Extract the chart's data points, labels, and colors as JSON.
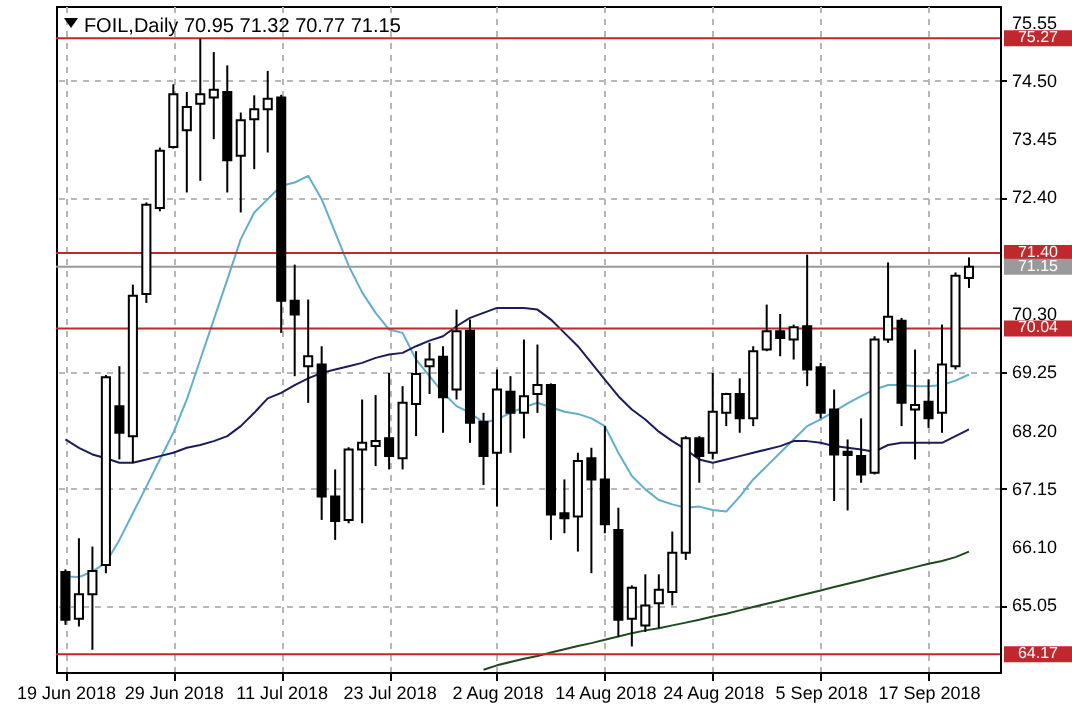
{
  "chart_data": {
    "type": "candlestick",
    "title": "FOIL,Daily  70.95 71.32 70.77 71.15",
    "categories": [
      "19 Jun 2018",
      null,
      null,
      null,
      null,
      null,
      null,
      null,
      "29 Jun 2018",
      null,
      null,
      null,
      null,
      null,
      null,
      null,
      "11 Jul 2018",
      null,
      null,
      null,
      null,
      null,
      null,
      null,
      "23 Jul 2018",
      null,
      null,
      null,
      null,
      null,
      null,
      null,
      "2 Aug 2018",
      null,
      null,
      null,
      null,
      null,
      null,
      null,
      "14 Aug 2018",
      null,
      null,
      null,
      null,
      null,
      null,
      null,
      "24 Aug 2018",
      null,
      null,
      null,
      null,
      null,
      null,
      null,
      "5 Sep 2018",
      null,
      null,
      null,
      null,
      null,
      null,
      null,
      "17 Sep 2018",
      null,
      null,
      null
    ],
    "ohlc": [
      [
        65.65,
        65.7,
        64.7,
        64.79
      ],
      [
        64.81,
        66.26,
        64.67,
        65.25
      ],
      [
        65.25,
        66.11,
        64.25,
        65.67
      ],
      [
        65.78,
        69.2,
        65.63,
        69.16
      ],
      [
        68.64,
        69.36,
        67.68,
        68.16
      ],
      [
        68.1,
        70.83,
        67.62,
        70.63
      ],
      [
        70.66,
        72.31,
        70.5,
        72.27
      ],
      [
        72.21,
        73.3,
        72.15,
        73.24
      ],
      [
        73.31,
        74.44,
        73.28,
        74.26
      ],
      [
        73.61,
        74.3,
        72.49,
        74.03
      ],
      [
        74.09,
        75.26,
        72.7,
        74.26
      ],
      [
        74.2,
        75.02,
        73.45,
        74.34
      ],
      [
        74.3,
        74.78,
        72.49,
        73.07
      ],
      [
        73.15,
        73.93,
        72.13,
        73.79
      ],
      [
        73.81,
        74.24,
        72.91,
        73.99
      ],
      [
        73.99,
        74.68,
        73.21,
        74.18
      ],
      [
        74.2,
        74.25,
        69.96,
        70.54
      ],
      [
        70.54,
        71.19,
        69.18,
        70.29
      ],
      [
        69.36,
        70.56,
        68.7,
        69.54
      ],
      [
        69.39,
        69.72,
        66.59,
        67.01
      ],
      [
        67.01,
        67.5,
        66.23,
        66.57
      ],
      [
        66.59,
        67.9,
        66.53,
        67.86
      ],
      [
        67.86,
        68.76,
        66.53,
        67.98
      ],
      [
        67.92,
        68.84,
        67.56,
        68.01
      ],
      [
        68.06,
        69.24,
        67.5,
        67.74
      ],
      [
        67.7,
        69.0,
        67.5,
        68.7
      ],
      [
        68.68,
        69.63,
        68.1,
        69.22
      ],
      [
        69.36,
        69.78,
        68.86,
        69.48
      ],
      [
        69.53,
        69.72,
        68.16,
        68.8
      ],
      [
        68.94,
        70.38,
        68.76,
        69.99
      ],
      [
        70.0,
        70.2,
        67.98,
        68.34
      ],
      [
        68.36,
        68.52,
        67.22,
        67.74
      ],
      [
        67.8,
        69.3,
        66.83,
        68.94
      ],
      [
        68.9,
        69.18,
        67.8,
        68.52
      ],
      [
        68.52,
        69.84,
        68.06,
        68.82
      ],
      [
        68.86,
        69.75,
        68.52,
        69.02
      ],
      [
        69.02,
        69.05,
        66.23,
        66.69
      ],
      [
        66.71,
        67.32,
        66.35,
        66.62
      ],
      [
        66.65,
        67.8,
        66.02,
        67.65
      ],
      [
        67.7,
        67.89,
        65.63,
        67.32
      ],
      [
        67.32,
        68.28,
        66.35,
        66.51
      ],
      [
        66.41,
        66.81,
        64.49,
        64.79
      ],
      [
        64.81,
        65.41,
        64.31,
        65.37
      ],
      [
        64.69,
        65.61,
        64.57,
        65.05
      ],
      [
        65.09,
        65.61,
        64.64,
        65.33
      ],
      [
        65.29,
        66.38,
        65.05,
        66.0
      ],
      [
        66.0,
        68.1,
        65.87,
        68.06
      ],
      [
        68.06,
        68.1,
        67.26,
        67.74
      ],
      [
        67.8,
        69.24,
        67.68,
        68.54
      ],
      [
        68.52,
        68.88,
        68.28,
        68.86
      ],
      [
        68.86,
        69.14,
        68.16,
        68.42
      ],
      [
        68.42,
        69.72,
        68.28,
        69.63
      ],
      [
        69.66,
        70.47,
        69.63,
        69.99
      ],
      [
        69.99,
        70.3,
        69.54,
        69.87
      ],
      [
        69.84,
        70.11,
        69.48,
        70.06
      ],
      [
        70.08,
        71.37,
        69.0,
        69.3
      ],
      [
        69.34,
        69.42,
        68.42,
        68.52
      ],
      [
        68.58,
        68.94,
        66.93,
        67.77
      ],
      [
        67.82,
        68.04,
        66.76,
        67.76
      ],
      [
        67.74,
        68.42,
        67.26,
        67.41
      ],
      [
        67.44,
        69.9,
        67.41,
        69.84
      ],
      [
        69.84,
        71.23,
        69.78,
        70.25
      ],
      [
        70.18,
        70.23,
        68.28,
        68.7
      ],
      [
        68.58,
        69.66,
        67.68,
        68.66
      ],
      [
        68.72,
        69.12,
        68.25,
        68.42
      ],
      [
        68.52,
        70.11,
        68.16,
        69.39
      ],
      [
        69.36,
        71.05,
        69.3,
        70.99
      ],
      [
        70.95,
        71.32,
        70.77,
        71.15
      ]
    ],
    "series": [
      {
        "type": "line",
        "color": "#62aecb",
        "values": [
          65.57,
          65.56,
          65.66,
          65.82,
          66.23,
          66.71,
          67.19,
          67.68,
          68.16,
          68.76,
          69.48,
          70.2,
          70.92,
          71.65,
          72.13,
          72.37,
          72.61,
          72.67,
          72.79,
          72.37,
          71.77,
          71.17,
          70.69,
          70.32,
          70.02,
          69.96,
          69.48,
          69.18,
          68.88,
          68.64,
          68.52,
          68.34,
          68.4,
          68.52,
          68.62,
          68.7,
          68.62,
          68.54,
          68.5,
          68.42,
          68.28,
          67.8,
          67.38,
          67.14,
          66.95,
          66.87,
          66.81,
          66.83,
          66.77,
          66.74,
          67.01,
          67.32,
          67.56,
          67.8,
          68.04,
          68.28,
          68.4,
          68.54,
          68.69,
          68.82,
          68.94,
          69.02,
          69.02,
          69.0,
          69.0,
          69.02,
          69.1,
          69.21
        ]
      },
      {
        "type": "line",
        "color": "#1c1c5a",
        "values": [
          68.04,
          67.89,
          67.77,
          67.7,
          67.62,
          67.62,
          67.68,
          67.74,
          67.8,
          67.89,
          67.94,
          68.01,
          68.1,
          68.28,
          68.52,
          68.78,
          68.88,
          69.02,
          69.14,
          69.24,
          69.3,
          69.36,
          69.42,
          69.51,
          69.57,
          69.6,
          69.72,
          69.82,
          69.9,
          70.08,
          70.23,
          70.32,
          70.41,
          70.41,
          70.41,
          70.38,
          70.2,
          69.96,
          69.72,
          69.42,
          69.12,
          68.82,
          68.58,
          68.4,
          68.18,
          68.01,
          67.86,
          67.68,
          67.62,
          67.68,
          67.74,
          67.8,
          67.86,
          67.92,
          68.01,
          68.01,
          67.98,
          67.92,
          67.89,
          67.86,
          67.82,
          67.94,
          67.98,
          67.98,
          67.98,
          67.98,
          68.1,
          68.22
        ]
      },
      {
        "type": "line",
        "color": "#1f4a1f",
        "values": [
          null,
          null,
          null,
          null,
          null,
          null,
          null,
          null,
          null,
          null,
          null,
          null,
          null,
          null,
          null,
          null,
          null,
          null,
          null,
          null,
          null,
          null,
          null,
          null,
          null,
          null,
          null,
          null,
          null,
          null,
          null,
          63.89,
          63.97,
          64.03,
          64.09,
          64.14,
          64.2,
          64.26,
          64.32,
          64.37,
          64.43,
          64.49,
          64.55,
          64.6,
          64.64,
          64.69,
          64.74,
          64.79,
          64.85,
          64.9,
          64.96,
          65.02,
          65.08,
          65.14,
          65.2,
          65.26,
          65.32,
          65.38,
          65.44,
          65.5,
          65.56,
          65.62,
          65.68,
          65.74,
          65.8,
          65.85,
          65.92,
          66.02
        ]
      }
    ],
    "ylim": [
      63.85,
      75.85
    ],
    "yticks": [
      {
        "value": 65.05,
        "label": "65.05"
      },
      {
        "value": 66.1,
        "label": "66.10"
      },
      {
        "value": 67.15,
        "label": "67.15"
      },
      {
        "value": 68.2,
        "label": "68.20"
      },
      {
        "value": 69.25,
        "label": "69.25"
      },
      {
        "value": 70.3,
        "label": "70.30"
      },
      {
        "value": 72.4,
        "label": "72.40"
      },
      {
        "value": 73.45,
        "label": "73.45"
      },
      {
        "value": 74.5,
        "label": "74.50"
      },
      {
        "value": 75.55,
        "label": "75.55"
      }
    ],
    "ref_lines": [
      {
        "axis": "y",
        "value": 75.27,
        "label": "75.27",
        "color": "#c0282d"
      },
      {
        "axis": "y",
        "value": 71.4,
        "label": "71.40",
        "color": "#c0282d"
      },
      {
        "axis": "y",
        "value": 70.04,
        "label": "70.04",
        "color": "#c0282d"
      },
      {
        "axis": "y",
        "value": 64.17,
        "label": "64.17",
        "color": "#c0282d"
      },
      {
        "axis": "y",
        "value": 71.15,
        "label": "71.15",
        "color": "#9a9a9a"
      }
    ],
    "grid": true
  }
}
